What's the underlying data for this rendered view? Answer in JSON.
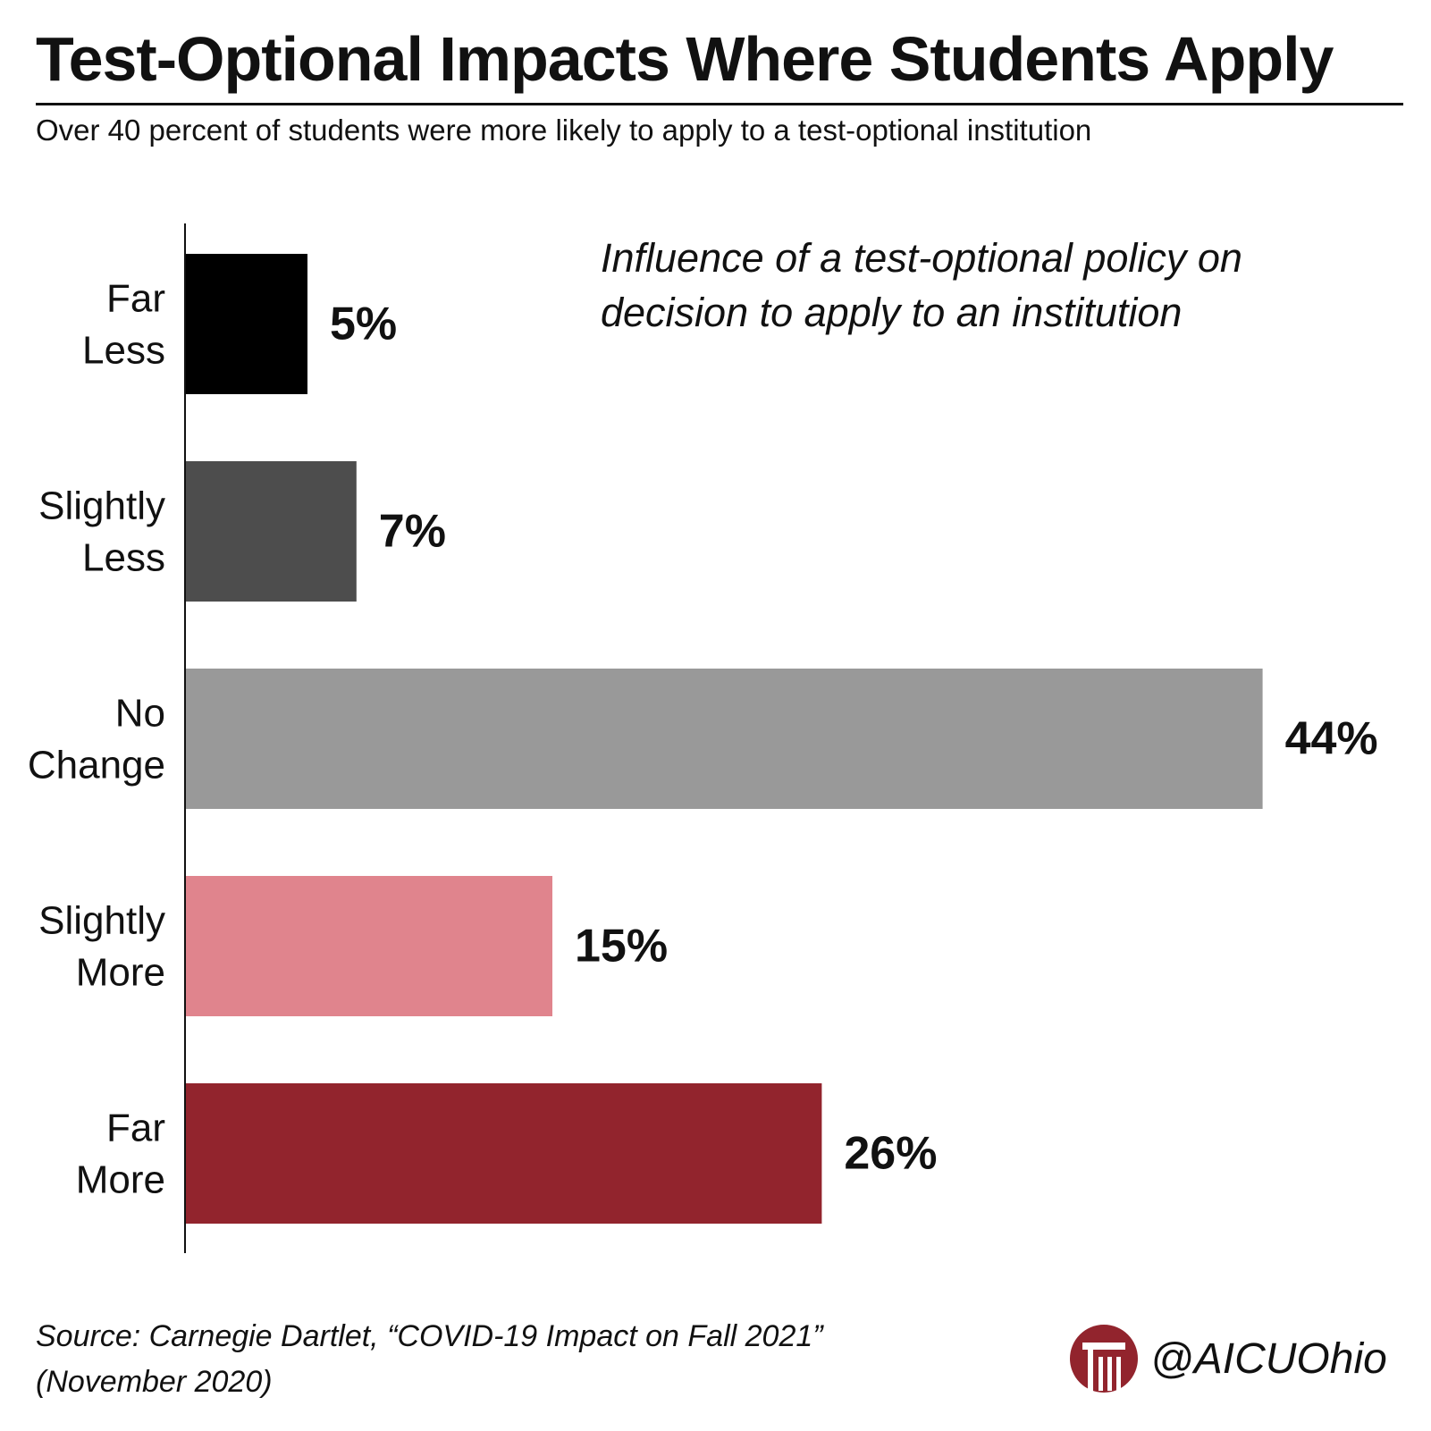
{
  "header": {
    "title": "Test-Optional Impacts Where Students Apply",
    "subtitle": "Over 40 percent of students were more likely to apply to a test-optional institution"
  },
  "annotation": {
    "line1": "Influence of a test-optional policy on",
    "line2": "decision to apply to an institution"
  },
  "chart_data": {
    "type": "bar",
    "orientation": "horizontal",
    "categories": [
      [
        "Far",
        "Less"
      ],
      [
        "Slightly",
        "Less"
      ],
      [
        "No",
        "Change"
      ],
      [
        "Slightly",
        "More"
      ],
      [
        "Far",
        "More"
      ]
    ],
    "values": [
      5,
      7,
      44,
      15,
      26
    ],
    "value_labels": [
      "5%",
      "7%",
      "44%",
      "15%",
      "26%"
    ],
    "colors": [
      "#000000",
      "#4d4d4d",
      "#999999",
      "#e0848d",
      "#92242d"
    ],
    "grid": false
  },
  "footer": {
    "source_line1": "Source: Carnegie Dartlet, “COVID-19 Impact on Fall 2021”",
    "source_line2": "(November 2020)",
    "handle": "@AICUOhio",
    "brand_color": "#92242d"
  }
}
